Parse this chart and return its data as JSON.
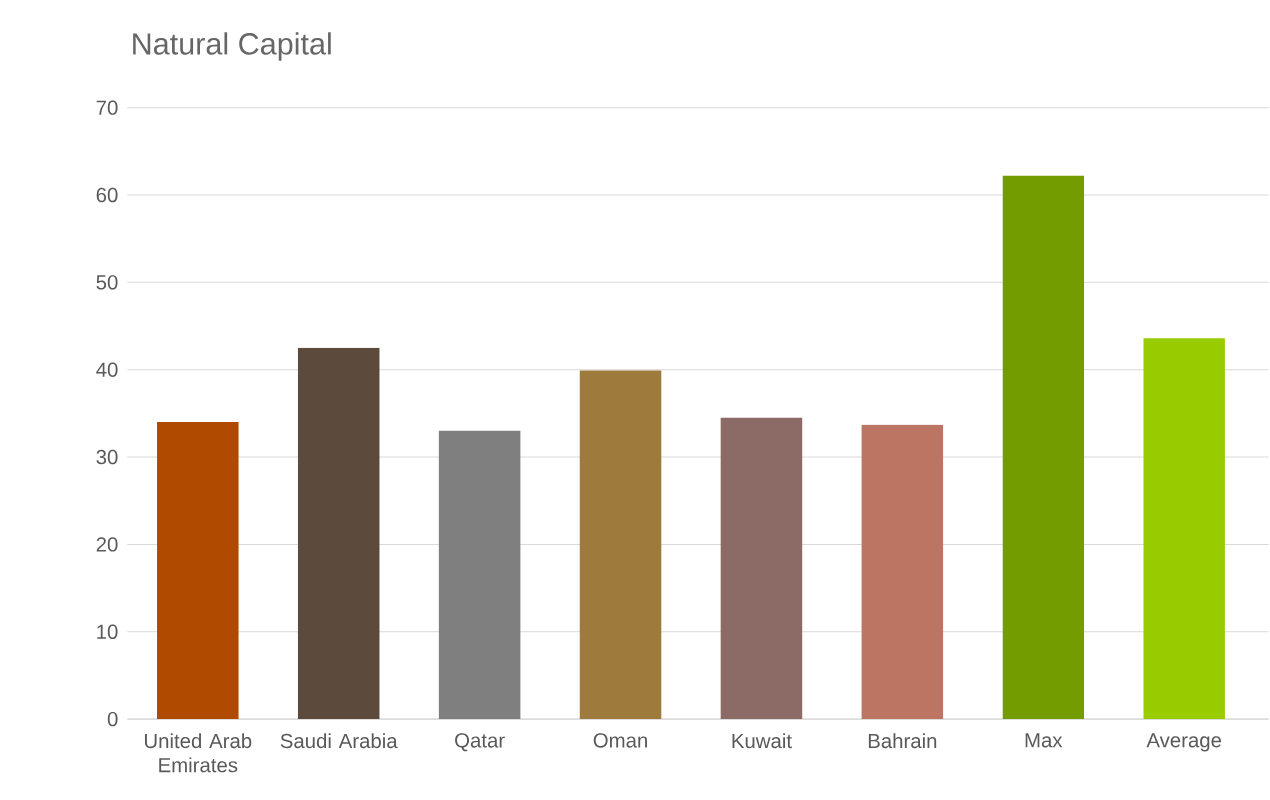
{
  "chart_data": {
    "type": "bar",
    "title": "Natural Capital",
    "categories": [
      "United Arab Emirates",
      "Saudi Arabia",
      "Qatar",
      "Oman",
      "Kuwait",
      "Bahrain",
      "Max",
      "Average"
    ],
    "values": [
      34.0,
      42.5,
      33.0,
      39.9,
      34.5,
      33.7,
      62.2,
      43.6
    ],
    "colors": [
      "#b04a00",
      "#5c4a3c",
      "#7f7f7f",
      "#9e7b3c",
      "#8c6a66",
      "#bc7562",
      "#729c00",
      "#99cc00"
    ],
    "ylim": [
      0,
      70
    ],
    "yticks": [
      0,
      10,
      20,
      30,
      40,
      50,
      60,
      70
    ],
    "grid": "y"
  }
}
